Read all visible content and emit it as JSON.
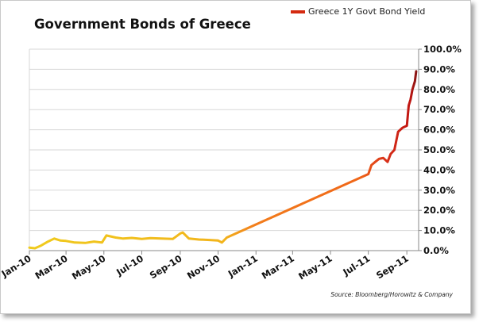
{
  "chart_data": {
    "type": "line",
    "title": "Government Bonds of Greece",
    "xlabel": "",
    "ylabel": "",
    "series_name": "Greece 1Y Govt Bond Yield",
    "source": "Source: Bloomberg/Horowitz & Company",
    "x_tick_labels": [
      "Jan-10",
      "Mar-10",
      "May-10",
      "Jul-10",
      "Sep-10",
      "Nov-10",
      "Jan-11",
      "Mar-11",
      "May-11",
      "Jul-11",
      "Sep-11"
    ],
    "x_tick_dates": [
      "2010-01-01",
      "2010-03-01",
      "2010-05-01",
      "2010-07-01",
      "2010-09-01",
      "2010-11-01",
      "2011-01-01",
      "2011-03-01",
      "2011-05-01",
      "2011-07-01",
      "2011-09-01"
    ],
    "xlim": [
      "2010-01-01",
      "2011-09-20"
    ],
    "y_tick_labels": [
      "0.0%",
      "10.0%",
      "20.0%",
      "30.0%",
      "40.0%",
      "50.0%",
      "60.0%",
      "70.0%",
      "80.0%",
      "90.0%",
      "100.0%"
    ],
    "ylim": [
      0,
      100
    ],
    "y_axis_position": "right",
    "grid": "horizontal",
    "legend_position": "top-right",
    "series": [
      {
        "name": "Greece 1Y Govt Bond Yield",
        "x": [
          "2010-01-01",
          "2010-01-10",
          "2010-01-20",
          "2010-01-31",
          "2010-02-10",
          "2010-02-20",
          "2010-03-01",
          "2010-03-15",
          "2010-04-01",
          "2010-04-15",
          "2010-04-28",
          "2010-05-05",
          "2010-05-20",
          "2010-06-01",
          "2010-06-15",
          "2010-07-01",
          "2010-07-15",
          "2010-08-01",
          "2010-08-20",
          "2010-09-01",
          "2010-09-05",
          "2010-09-15",
          "2010-10-01",
          "2010-10-15",
          "2010-11-01",
          "2010-11-07",
          "2010-11-15",
          "2011-07-01",
          "2011-07-06",
          "2011-07-12",
          "2011-07-18",
          "2011-07-25",
          "2011-08-01",
          "2011-08-06",
          "2011-08-12",
          "2011-08-18",
          "2011-08-25",
          "2011-09-01",
          "2011-09-04",
          "2011-09-07",
          "2011-09-10",
          "2011-09-14",
          "2011-09-16"
        ],
        "y": [
          1.5,
          1.2,
          2.5,
          4.5,
          6.0,
          5.0,
          4.8,
          4.0,
          3.8,
          4.5,
          4.0,
          7.5,
          6.5,
          6.0,
          6.3,
          5.8,
          6.2,
          6.0,
          5.8,
          8.5,
          9.0,
          6.0,
          5.5,
          5.3,
          5.0,
          4.0,
          6.5,
          38.0,
          42.5,
          44.0,
          45.5,
          46.0,
          44.0,
          48.0,
          50.0,
          59.0,
          61.0,
          62.0,
          72.0,
          75.0,
          80.0,
          84.0,
          89.0
        ]
      }
    ],
    "colors": {
      "early": "#f0cb1d",
      "mid": "#f2791c",
      "late": "#cc1e0c",
      "end": "#861a1a",
      "grid": "#d7d7d7",
      "axis": "#8a8a8a"
    }
  }
}
